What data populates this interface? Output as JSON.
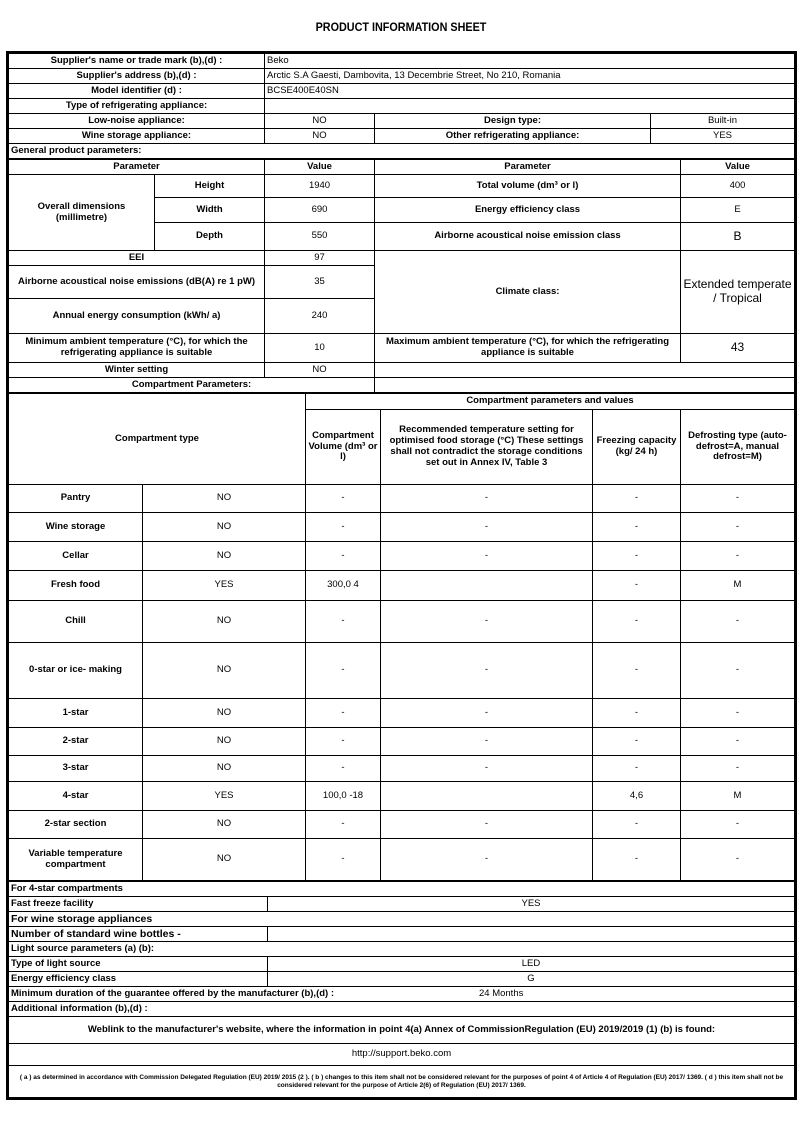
{
  "title": "PRODUCT INFORMATION SHEET",
  "supplier": {
    "name_label": "Supplier's name or trade mark (b),(d) :",
    "name": "Beko",
    "address_label": "Supplier's address (b),(d) :",
    "address": "Arctic S.A  Gaesti, Dambovita, 13 Decembrie Street, No 210, Romania",
    "model_label": "Model identifier (d) :",
    "model": "BCSE400E40SN",
    "type_label": "Type of refrigerating appliance:",
    "low_noise_label": "Low-noise appliance:",
    "low_noise": "NO",
    "design_label": "Design type:",
    "design": "Built-in",
    "wine_label": "Wine storage appliance:",
    "wine": "NO",
    "other_label": "Other refrigerating appliance:",
    "other": "YES"
  },
  "general": {
    "section": "General product parameters:",
    "h_param": "Parameter",
    "h_value": "Value",
    "dims_label": "Overall dimensions (millimetre)",
    "height_label": "Height",
    "height": "1940",
    "width_label": "Width",
    "width": "690",
    "depth_label": "Depth",
    "depth": "550",
    "total_volume_label": "Total volume (dm³ or l)",
    "total_volume": "400",
    "ee_class_label": "Energy efficiency class",
    "ee_class": "E",
    "noise_class_label": "Airborne acoustical noise emission class",
    "noise_class": "B",
    "eei_label": "EEI",
    "eei": "97",
    "noise_label": "Airborne acoustical noise emissions (dB(A) re 1 pW)",
    "noise": "35",
    "annual_label": "Annual energy consumption (kWh/ a)",
    "annual": "240",
    "climate_label": "Climate class:",
    "climate": "Extended temperate / Tropical",
    "min_amb_label": "Minimum ambient temperature (°C), for which the refrigerating appliance is suitable",
    "min_amb": "10",
    "max_amb_label": "Maximum ambient temperature (°C), for which the refrigerating appliance is suitable",
    "max_amb": "43",
    "winter_label": "Winter setting",
    "winter": "NO"
  },
  "compartments": {
    "section": "Compartment Parameters:",
    "group_header": "Compartment parameters and values",
    "h_type": "Compartment type",
    "h_volume": "Compartment Volume (dm³ or l)",
    "h_temp": "Recommended temperature setting for optimised food storage (°C) These settings shall not contradict the storage conditions set out in Annex IV, Table 3",
    "h_freeze": "Freezing capacity (kg/ 24 h)",
    "h_defrost": "Defrosting type (auto-defrost=A, manual defrost=M)",
    "rows": [
      {
        "type": "Pantry",
        "present": "NO",
        "volume": "-",
        "temp": "-",
        "freeze": "-",
        "defrost": "-"
      },
      {
        "type": "Wine storage",
        "present": "NO",
        "volume": "-",
        "temp": "-",
        "freeze": "-",
        "defrost": "-"
      },
      {
        "type": "Cellar",
        "present": "NO",
        "volume": "-",
        "temp": "-",
        "freeze": "-",
        "defrost": "-"
      },
      {
        "type": "Fresh food",
        "present": "YES",
        "volume": "300,0 4",
        "temp": "",
        "freeze": "-",
        "defrost": "M"
      },
      {
        "type": "Chill",
        "present": "NO",
        "volume": "-",
        "temp": "-",
        "freeze": "-",
        "defrost": "-"
      },
      {
        "type": "0-star or ice- making",
        "present": "NO",
        "volume": "-",
        "temp": "-",
        "freeze": "-",
        "defrost": "-"
      },
      {
        "type": "1-star",
        "present": "NO",
        "volume": "-",
        "temp": "-",
        "freeze": "-",
        "defrost": "-"
      },
      {
        "type": "2-star",
        "present": "NO",
        "volume": "-",
        "temp": "-",
        "freeze": "-",
        "defrost": "-"
      },
      {
        "type": "3-star",
        "present": "NO",
        "volume": "-",
        "temp": "-",
        "freeze": "-",
        "defrost": "-"
      },
      {
        "type": "4-star",
        "present": "YES",
        "volume": "100,0 -18",
        "temp": "",
        "freeze": "4,6",
        "defrost": "M"
      },
      {
        "type": "2-star section",
        "present": "NO",
        "volume": "-",
        "temp": "-",
        "freeze": "-",
        "defrost": "-"
      },
      {
        "type": "Variable temperature compartment",
        "present": "NO",
        "volume": "-",
        "temp": "-",
        "freeze": "-",
        "defrost": "-"
      }
    ]
  },
  "four_star": {
    "section": "For 4-star compartments",
    "fast_freeze_label": "Fast freeze facility",
    "fast_freeze": "YES"
  },
  "wine_app": {
    "section": "For wine storage appliances",
    "bottles_label": "Number of standard wine bottles",
    "bottles": "-"
  },
  "light": {
    "section": "Light source parameters (a) (b):",
    "type_label": "Type of light source",
    "type": "LED",
    "ee_label": "Energy efficiency class",
    "ee": "G"
  },
  "guarantee": {
    "label": "Minimum duration of the guarantee offered by the manufacturer (b),(d) :",
    "value": "24 Months"
  },
  "additional_label": "Additional information (b),(d) :",
  "weblink_label": "Weblink to the manufacturer's website, where the information in point 4(a) Annex of CommissionRegulation (EU) 2019/2019 (1) (b) is found:",
  "weblink": "http://support.beko.com",
  "footnote": "( a ) as determined in accordance with Commission Delegated Regulation (EU) 2019/ 2015 (2 ). ( b ) changes to this item shall not be considered relevant for the purposes of point 4 of Article 4 of Regulation (EU) 2017/ 1369. ( d ) this item shall not be considered relevant for the purpose of Article 2(6) of Regulation (EU) 2017/ 1369."
}
